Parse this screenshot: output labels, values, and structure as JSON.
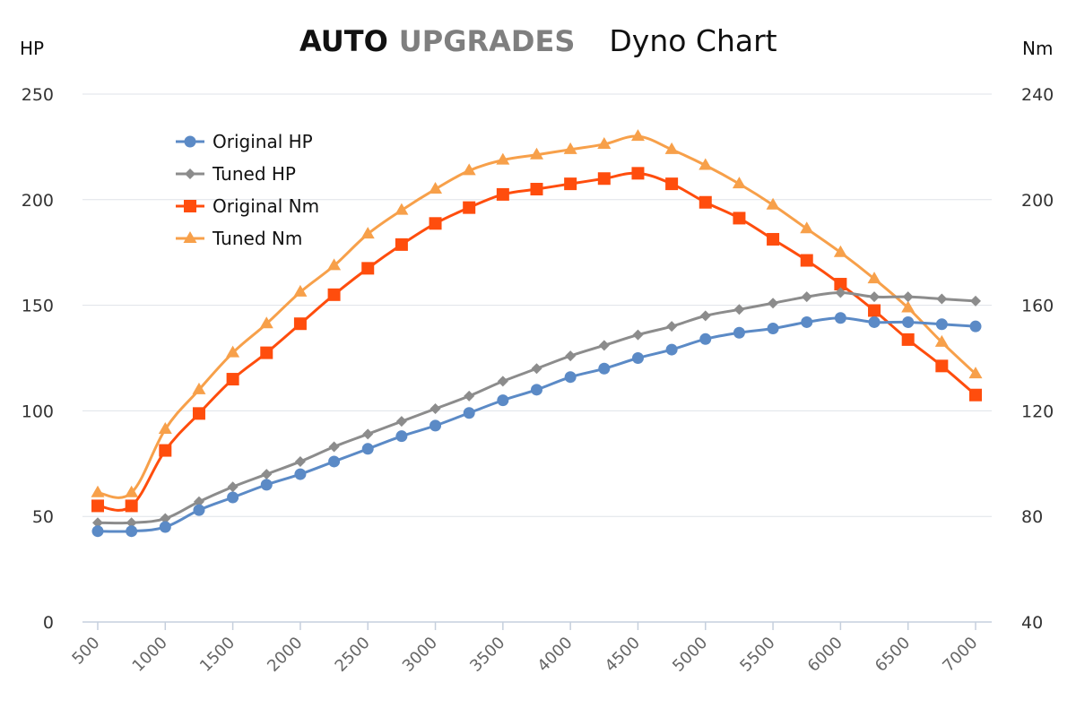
{
  "header": {
    "brand_bold": "AUTO",
    "brand_gray": "UPGRADES",
    "subtitle": "Dyno Chart"
  },
  "chart_data": {
    "type": "line",
    "title": "AUTO UPGRADES Dyno Chart",
    "xlabel": "",
    "ylabel_left": "HP",
    "ylabel_right": "Nm",
    "ylim_left": [
      0,
      250
    ],
    "ylim_right": [
      40,
      240
    ],
    "yticks_left": [
      0,
      50,
      100,
      150,
      200,
      250
    ],
    "yticks_right": [
      40,
      80,
      120,
      160,
      200,
      240
    ],
    "xlim": [
      500,
      7000
    ],
    "xticks": [
      500,
      1000,
      1500,
      2000,
      2500,
      3000,
      3500,
      4000,
      4500,
      5000,
      5500,
      6000,
      6500,
      7000
    ],
    "grid": true,
    "legend_position": "top-left",
    "x": [
      500,
      750,
      1000,
      1250,
      1500,
      1750,
      2000,
      2250,
      2500,
      2750,
      3000,
      3250,
      3500,
      3750,
      4000,
      4250,
      4500,
      4750,
      5000,
      5250,
      5500,
      5750,
      6000,
      6250,
      6500,
      6750,
      7000
    ],
    "series": [
      {
        "name": "Original HP",
        "axis": "left",
        "color": "#5b8ac6",
        "marker": "circle",
        "values": [
          43,
          43,
          45,
          53,
          59,
          65,
          70,
          76,
          82,
          88,
          93,
          99,
          105,
          110,
          116,
          120,
          125,
          129,
          134,
          137,
          139,
          142,
          144,
          142,
          142,
          141,
          140
        ]
      },
      {
        "name": "Tuned HP",
        "axis": "left",
        "color": "#8c8c8c",
        "marker": "diamond",
        "values": [
          47,
          47,
          49,
          57,
          64,
          70,
          76,
          83,
          89,
          95,
          101,
          107,
          114,
          120,
          126,
          131,
          136,
          140,
          145,
          148,
          151,
          154,
          156,
          154,
          154,
          153,
          152
        ]
      },
      {
        "name": "Original Nm",
        "axis": "right",
        "color": "#ff4d0d",
        "marker": "square",
        "values": [
          84,
          84,
          105,
          119,
          132,
          142,
          153,
          164,
          174,
          183,
          191,
          197,
          202,
          204,
          206,
          208,
          210,
          206,
          199,
          193,
          185,
          177,
          168,
          158,
          147,
          137,
          126
        ]
      },
      {
        "name": "Tuned Nm",
        "axis": "right",
        "color": "#f7a04a",
        "marker": "triangle",
        "values": [
          89,
          89,
          113,
          128,
          142,
          153,
          165,
          175,
          187,
          196,
          204,
          211,
          215,
          217,
          219,
          221,
          224,
          219,
          213,
          206,
          198,
          189,
          180,
          170,
          159,
          146,
          134
        ]
      }
    ]
  }
}
